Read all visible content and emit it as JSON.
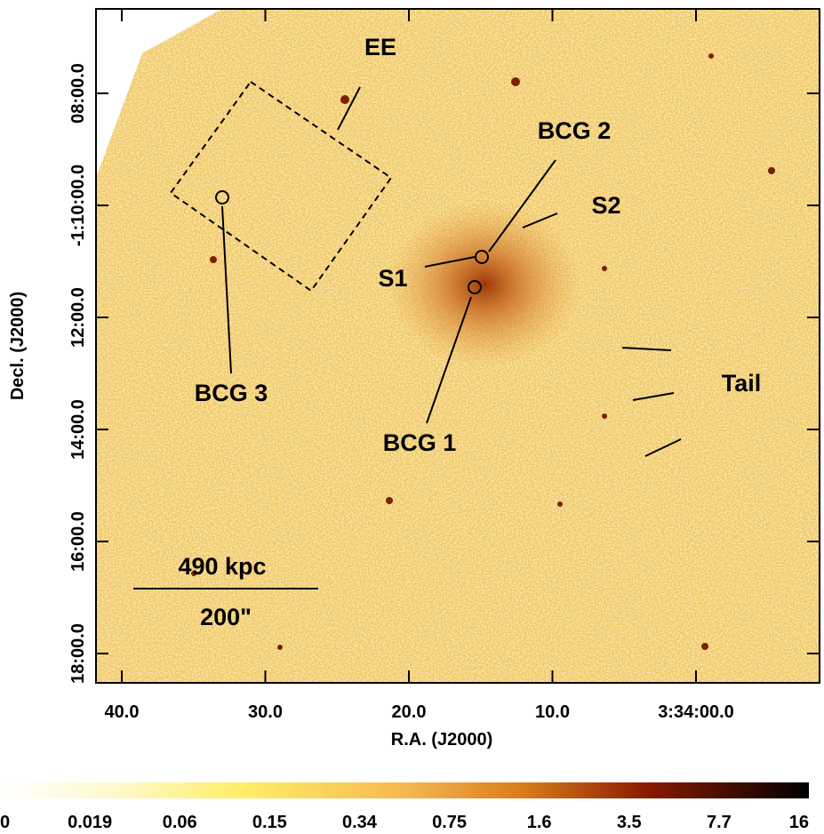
{
  "figure": {
    "annotations": {
      "ee": "EE",
      "bcg2": "BCG 2",
      "s2": "S2",
      "s1": "S1",
      "bcg3": "BCG 3",
      "bcg1": "BCG 1",
      "tail": "Tail",
      "scale_kpc": "490 kpc",
      "scale_arcsec": "200\""
    },
    "y_axis": {
      "label": "Decl. (J2000)",
      "ticks": [
        "08:00.0",
        "-1:10:00.0",
        "12:00.0",
        "14:00.0",
        "16:00.0",
        "18:00.0"
      ]
    },
    "x_axis": {
      "label": "R.A. (J2000)",
      "ticks": [
        "40.0",
        "30.0",
        "20.0",
        "10.0",
        "3:34:00.0"
      ]
    },
    "colorbar": {
      "ticks": [
        "0",
        "0.019",
        "0.06",
        "0.15",
        "0.34",
        "0.75",
        "1.6",
        "3.5",
        "7.7",
        "16"
      ]
    }
  }
}
